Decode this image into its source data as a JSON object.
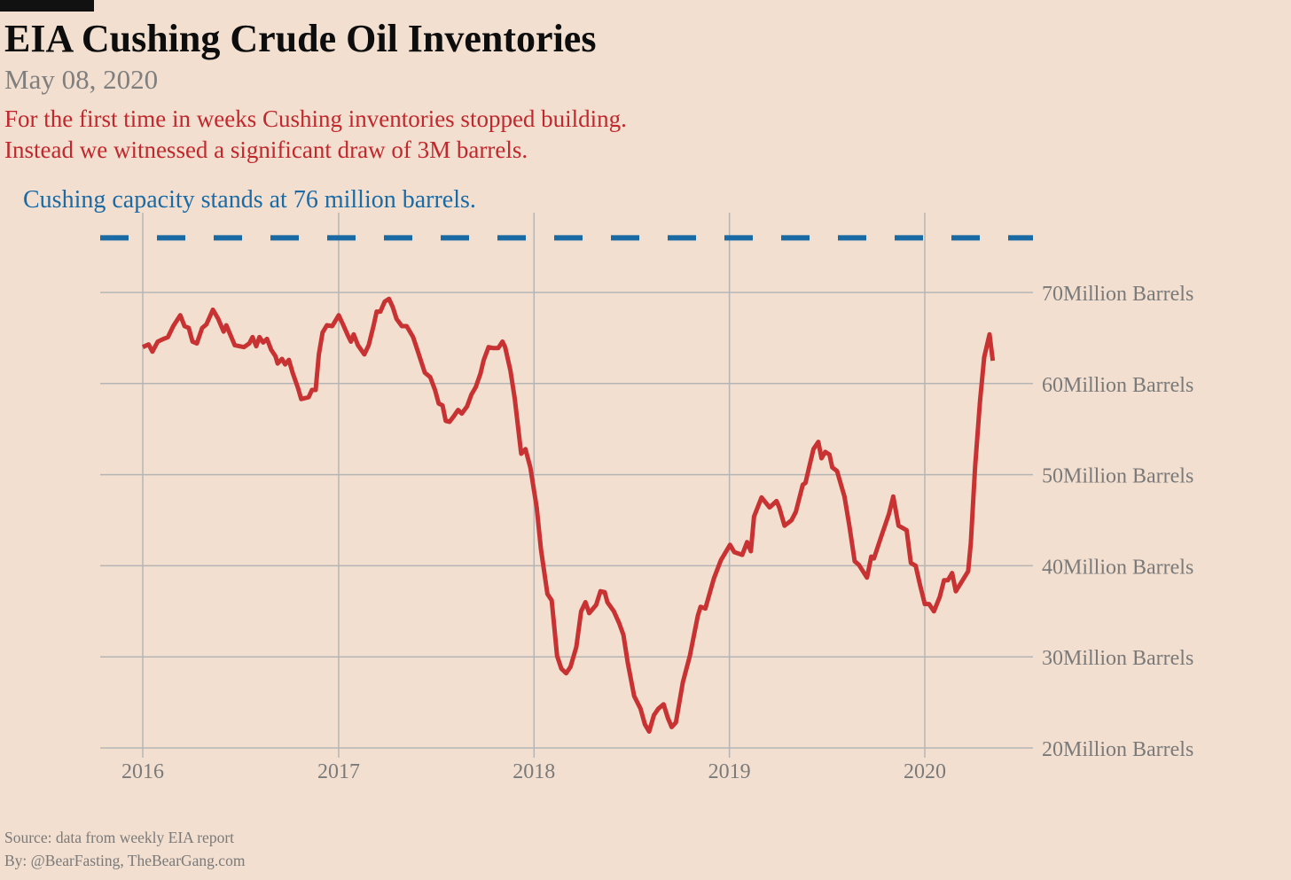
{
  "header": {
    "title": "EIA Cushing Crude Oil Inventories",
    "date": "May 08, 2020",
    "subtitle_lines": [
      "For the first time in weeks Cushing inventories stopped building.",
      "Instead we witnessed a significant draw of 3M barrels."
    ],
    "capacity_note": "Cushing capacity stands at 76 million barrels."
  },
  "footer": {
    "source": "Source: data from  weekly EIA report",
    "byline": "By: @BearFasting, TheBearGang.com"
  },
  "colors": {
    "background": "#f2dfcf",
    "series": "#c83232",
    "capacity_line": "#1a6aa5",
    "grid": "#b5b5b5",
    "subtitle": "#c0282d"
  },
  "chart_data": {
    "type": "line",
    "title": "EIA Cushing Crude Oil Inventories",
    "xlabel": "",
    "ylabel": "",
    "x_ticks": [
      "2016",
      "2017",
      "2018",
      "2019",
      "2020"
    ],
    "y_ticks": [
      20,
      30,
      40,
      50,
      60,
      70
    ],
    "y_tick_suffix": "Million Barrels",
    "y_axis_side": "right",
    "ylim": [
      20,
      76
    ],
    "grid": true,
    "reference_line": {
      "value": 76,
      "style": "dashed"
    },
    "series": [
      {
        "points": [
          [
            "2016-01-01",
            64.0
          ],
          [
            "2016-01-12",
            64.3
          ],
          [
            "2016-01-19",
            63.5
          ],
          [
            "2016-01-29",
            64.6
          ],
          [
            "2016-02-09",
            64.9
          ],
          [
            "2016-02-17",
            65.1
          ],
          [
            "2016-02-27",
            66.3
          ],
          [
            "2016-03-11",
            67.5
          ],
          [
            "2016-03-19",
            66.3
          ],
          [
            "2016-03-27",
            66.1
          ],
          [
            "2016-04-03",
            64.6
          ],
          [
            "2016-04-11",
            64.4
          ],
          [
            "2016-04-21",
            66.1
          ],
          [
            "2016-04-29",
            66.5
          ],
          [
            "2016-05-11",
            68.1
          ],
          [
            "2016-05-21",
            67.1
          ],
          [
            "2016-05-31",
            65.7
          ],
          [
            "2016-06-05",
            66.4
          ],
          [
            "2016-06-21",
            64.2
          ],
          [
            "2016-07-08",
            64.0
          ],
          [
            "2016-07-18",
            64.4
          ],
          [
            "2016-07-24",
            65.1
          ],
          [
            "2016-07-31",
            64.1
          ],
          [
            "2016-08-06",
            65.1
          ],
          [
            "2016-08-13",
            64.5
          ],
          [
            "2016-08-20",
            64.9
          ],
          [
            "2016-08-28",
            63.7
          ],
          [
            "2016-09-05",
            63.0
          ],
          [
            "2016-09-09",
            62.2
          ],
          [
            "2016-09-17",
            62.7
          ],
          [
            "2016-09-23",
            62.1
          ],
          [
            "2016-09-30",
            62.6
          ],
          [
            "2016-10-07",
            61.2
          ],
          [
            "2016-10-17",
            59.5
          ],
          [
            "2016-10-23",
            58.3
          ],
          [
            "2016-11-06",
            58.5
          ],
          [
            "2016-11-12",
            59.3
          ],
          [
            "2016-11-19",
            59.3
          ],
          [
            "2016-11-25",
            63.2
          ],
          [
            "2016-12-02",
            65.6
          ],
          [
            "2016-12-10",
            66.4
          ],
          [
            "2016-12-20",
            66.3
          ],
          [
            "2017-01-01",
            67.5
          ],
          [
            "2017-01-09",
            66.5
          ],
          [
            "2017-01-18",
            65.3
          ],
          [
            "2017-01-24",
            64.6
          ],
          [
            "2017-01-29",
            65.4
          ],
          [
            "2017-02-06",
            64.2
          ],
          [
            "2017-02-18",
            63.2
          ],
          [
            "2017-02-26",
            64.2
          ],
          [
            "2017-03-07",
            66.3
          ],
          [
            "2017-03-13",
            67.9
          ],
          [
            "2017-03-20",
            67.9
          ],
          [
            "2017-03-28",
            69.0
          ],
          [
            "2017-04-05",
            69.3
          ],
          [
            "2017-04-12",
            68.4
          ],
          [
            "2017-04-19",
            67.1
          ],
          [
            "2017-04-29",
            66.3
          ],
          [
            "2017-05-08",
            66.3
          ],
          [
            "2017-05-20",
            65.1
          ],
          [
            "2017-05-28",
            63.7
          ],
          [
            "2017-06-11",
            61.2
          ],
          [
            "2017-06-21",
            60.7
          ],
          [
            "2017-06-30",
            59.3
          ],
          [
            "2017-07-07",
            57.8
          ],
          [
            "2017-07-14",
            57.6
          ],
          [
            "2017-07-20",
            55.9
          ],
          [
            "2017-07-27",
            55.8
          ],
          [
            "2017-08-04",
            56.4
          ],
          [
            "2017-08-12",
            57.1
          ],
          [
            "2017-08-19",
            56.7
          ],
          [
            "2017-08-29",
            57.5
          ],
          [
            "2017-09-06",
            58.8
          ],
          [
            "2017-09-14",
            59.6
          ],
          [
            "2017-09-23",
            61.1
          ],
          [
            "2017-09-29",
            62.6
          ],
          [
            "2017-10-08",
            64.0
          ],
          [
            "2017-10-16",
            63.9
          ],
          [
            "2017-10-26",
            63.9
          ],
          [
            "2017-11-03",
            64.6
          ],
          [
            "2017-11-08",
            64.0
          ],
          [
            "2017-11-18",
            61.4
          ],
          [
            "2017-11-26",
            58.3
          ],
          [
            "2017-12-08",
            52.3
          ],
          [
            "2017-12-16",
            52.8
          ],
          [
            "2017-12-25",
            50.8
          ],
          [
            "2018-01-06",
            46.4
          ],
          [
            "2018-01-14",
            41.8
          ],
          [
            "2018-01-26",
            36.9
          ],
          [
            "2018-02-03",
            36.2
          ],
          [
            "2018-02-13",
            30.1
          ],
          [
            "2018-02-21",
            28.7
          ],
          [
            "2018-03-02",
            28.2
          ],
          [
            "2018-03-10",
            28.9
          ],
          [
            "2018-03-21",
            31.1
          ],
          [
            "2018-03-30",
            35.0
          ],
          [
            "2018-04-07",
            36.0
          ],
          [
            "2018-04-14",
            34.8
          ],
          [
            "2018-04-27",
            35.7
          ],
          [
            "2018-05-05",
            37.2
          ],
          [
            "2018-05-13",
            37.1
          ],
          [
            "2018-05-18",
            36.0
          ],
          [
            "2018-05-30",
            35.0
          ],
          [
            "2018-06-09",
            33.7
          ],
          [
            "2018-06-17",
            32.4
          ],
          [
            "2018-06-25",
            29.4
          ],
          [
            "2018-07-07",
            25.7
          ],
          [
            "2018-07-19",
            24.3
          ],
          [
            "2018-07-27",
            22.6
          ],
          [
            "2018-08-04",
            21.8
          ],
          [
            "2018-08-13",
            23.6
          ],
          [
            "2018-08-21",
            24.3
          ],
          [
            "2018-08-31",
            24.8
          ],
          [
            "2018-09-08",
            23.3
          ],
          [
            "2018-09-15",
            22.3
          ],
          [
            "2018-09-23",
            22.8
          ],
          [
            "2018-10-06",
            27.2
          ],
          [
            "2018-10-19",
            30.1
          ],
          [
            "2018-11-03",
            34.5
          ],
          [
            "2018-11-08",
            35.5
          ],
          [
            "2018-11-17",
            35.3
          ],
          [
            "2018-12-03",
            38.6
          ],
          [
            "2018-12-16",
            40.6
          ],
          [
            "2019-01-02",
            42.3
          ],
          [
            "2019-01-10",
            41.5
          ],
          [
            "2019-01-25",
            41.2
          ],
          [
            "2019-02-03",
            42.6
          ],
          [
            "2019-02-10",
            41.6
          ],
          [
            "2019-02-16",
            45.4
          ],
          [
            "2019-03-02",
            47.5
          ],
          [
            "2019-03-17",
            46.4
          ],
          [
            "2019-03-30",
            47.1
          ],
          [
            "2019-04-04",
            46.4
          ],
          [
            "2019-04-14",
            44.4
          ],
          [
            "2019-04-27",
            45.0
          ],
          [
            "2019-05-05",
            45.9
          ],
          [
            "2019-05-18",
            48.9
          ],
          [
            "2019-05-23",
            49.1
          ],
          [
            "2019-06-07",
            52.8
          ],
          [
            "2019-06-16",
            53.6
          ],
          [
            "2019-06-22",
            51.8
          ],
          [
            "2019-06-29",
            52.5
          ],
          [
            "2019-07-07",
            52.2
          ],
          [
            "2019-07-12",
            50.8
          ],
          [
            "2019-07-21",
            50.4
          ],
          [
            "2019-08-04",
            47.6
          ],
          [
            "2019-08-13",
            44.4
          ],
          [
            "2019-08-23",
            40.5
          ],
          [
            "2019-08-31",
            40.1
          ],
          [
            "2019-09-15",
            38.7
          ],
          [
            "2019-09-23",
            41.0
          ],
          [
            "2019-09-28",
            40.8
          ],
          [
            "2019-10-11",
            43.1
          ],
          [
            "2019-10-26",
            45.7
          ],
          [
            "2019-11-03",
            47.6
          ],
          [
            "2019-11-13",
            44.4
          ],
          [
            "2019-11-28",
            43.9
          ],
          [
            "2019-12-06",
            40.3
          ],
          [
            "2019-12-15",
            40.0
          ],
          [
            "2019-12-23",
            37.9
          ],
          [
            "2020-01-01",
            35.8
          ],
          [
            "2020-01-09",
            35.8
          ],
          [
            "2020-01-18",
            35.0
          ],
          [
            "2020-01-29",
            36.6
          ],
          [
            "2020-02-06",
            38.4
          ],
          [
            "2020-02-13",
            38.4
          ],
          [
            "2020-02-21",
            39.2
          ],
          [
            "2020-02-28",
            37.2
          ],
          [
            "2020-03-22",
            39.4
          ],
          [
            "2020-03-27",
            42.5
          ],
          [
            "2020-04-04",
            50.8
          ],
          [
            "2020-04-13",
            58.0
          ],
          [
            "2020-04-21",
            62.9
          ],
          [
            "2020-05-01",
            65.4
          ],
          [
            "2020-05-07",
            62.5
          ]
        ]
      }
    ]
  }
}
